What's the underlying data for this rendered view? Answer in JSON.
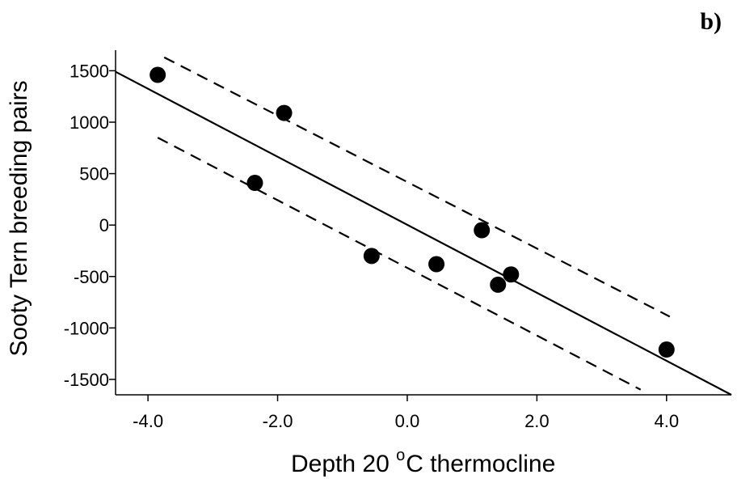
{
  "panel_label": "b)",
  "chart_data": {
    "type": "scatter",
    "title": "",
    "xlabel_parts": {
      "prefix": "Depth 20 ",
      "degree": "o",
      "suffix": "C thermocline"
    },
    "ylabel": "Sooty Tern breeding pairs",
    "xlim": [
      -4.5,
      5.0
    ],
    "ylim": [
      -1650,
      1700
    ],
    "x_ticks": [
      -4.0,
      -2.0,
      0.0,
      2.0,
      4.0
    ],
    "x_tick_labels": [
      "-4.0",
      "-2.0",
      "0.0",
      "2.0",
      "4.0"
    ],
    "y_ticks": [
      1500,
      1000,
      500,
      0,
      -500,
      -1000,
      -1500
    ],
    "y_tick_labels": [
      "1500",
      "1000",
      "500",
      "0",
      "-500",
      "-1000",
      "-1500"
    ],
    "grid": false,
    "points": [
      {
        "x": -3.85,
        "y": 1460
      },
      {
        "x": -1.9,
        "y": 1090
      },
      {
        "x": -2.35,
        "y": 410
      },
      {
        "x": -0.55,
        "y": -300
      },
      {
        "x": 0.45,
        "y": -380
      },
      {
        "x": 1.15,
        "y": -50
      },
      {
        "x": 1.4,
        "y": -580
      },
      {
        "x": 1.6,
        "y": -480
      },
      {
        "x": 4.0,
        "y": -1210
      }
    ],
    "fit_line": [
      {
        "x": -4.5,
        "y": 1490
      },
      {
        "x": 5.0,
        "y": -1650
      }
    ],
    "confidence_upper": [
      {
        "x": -3.75,
        "y": 1630
      },
      {
        "x": 4.05,
        "y": -890
      }
    ],
    "confidence_lower": [
      {
        "x": -3.85,
        "y": 850
      },
      {
        "x": 3.6,
        "y": -1600
      }
    ]
  }
}
